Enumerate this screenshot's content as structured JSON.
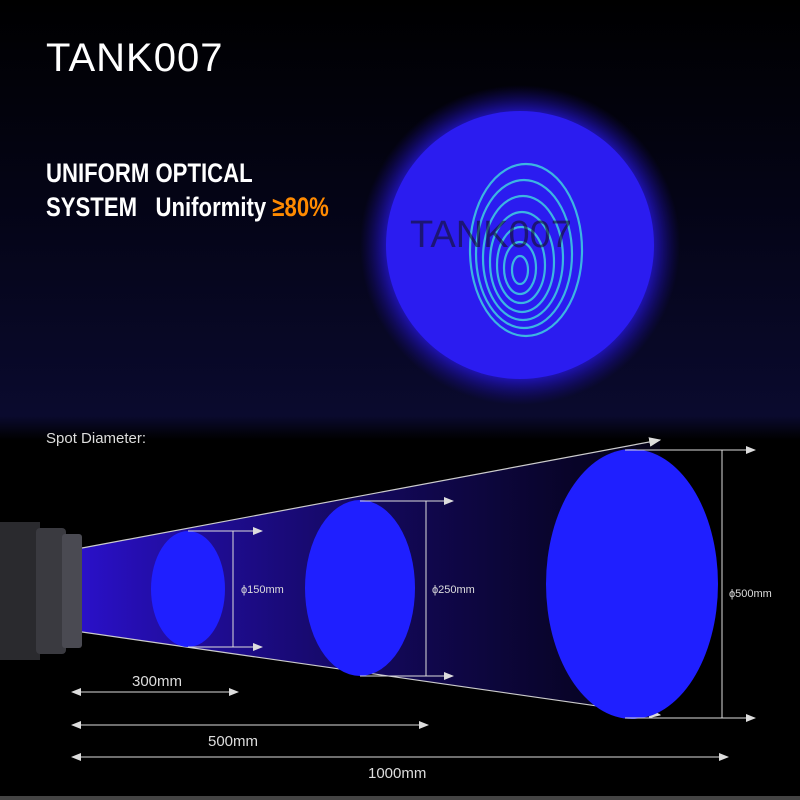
{
  "brand": {
    "logo_text": "TANK007"
  },
  "headline": {
    "line1": "UNIFORM OPTICAL",
    "line2_a": "SYSTEM",
    "line2_b": "Uniformity",
    "line2_value": "≥80%"
  },
  "colors": {
    "accent": "#ff8a00",
    "beam": "#1f1fff",
    "background": "#000000"
  },
  "diagram": {
    "label": "Spot Diameter:",
    "spots": [
      {
        "distance": "300mm",
        "diameter": "ϕ150mm"
      },
      {
        "distance": "500mm",
        "diameter": "ϕ250mm"
      },
      {
        "distance": "1000mm",
        "diameter": "ϕ500mm"
      }
    ]
  },
  "watermark": "TANK007"
}
